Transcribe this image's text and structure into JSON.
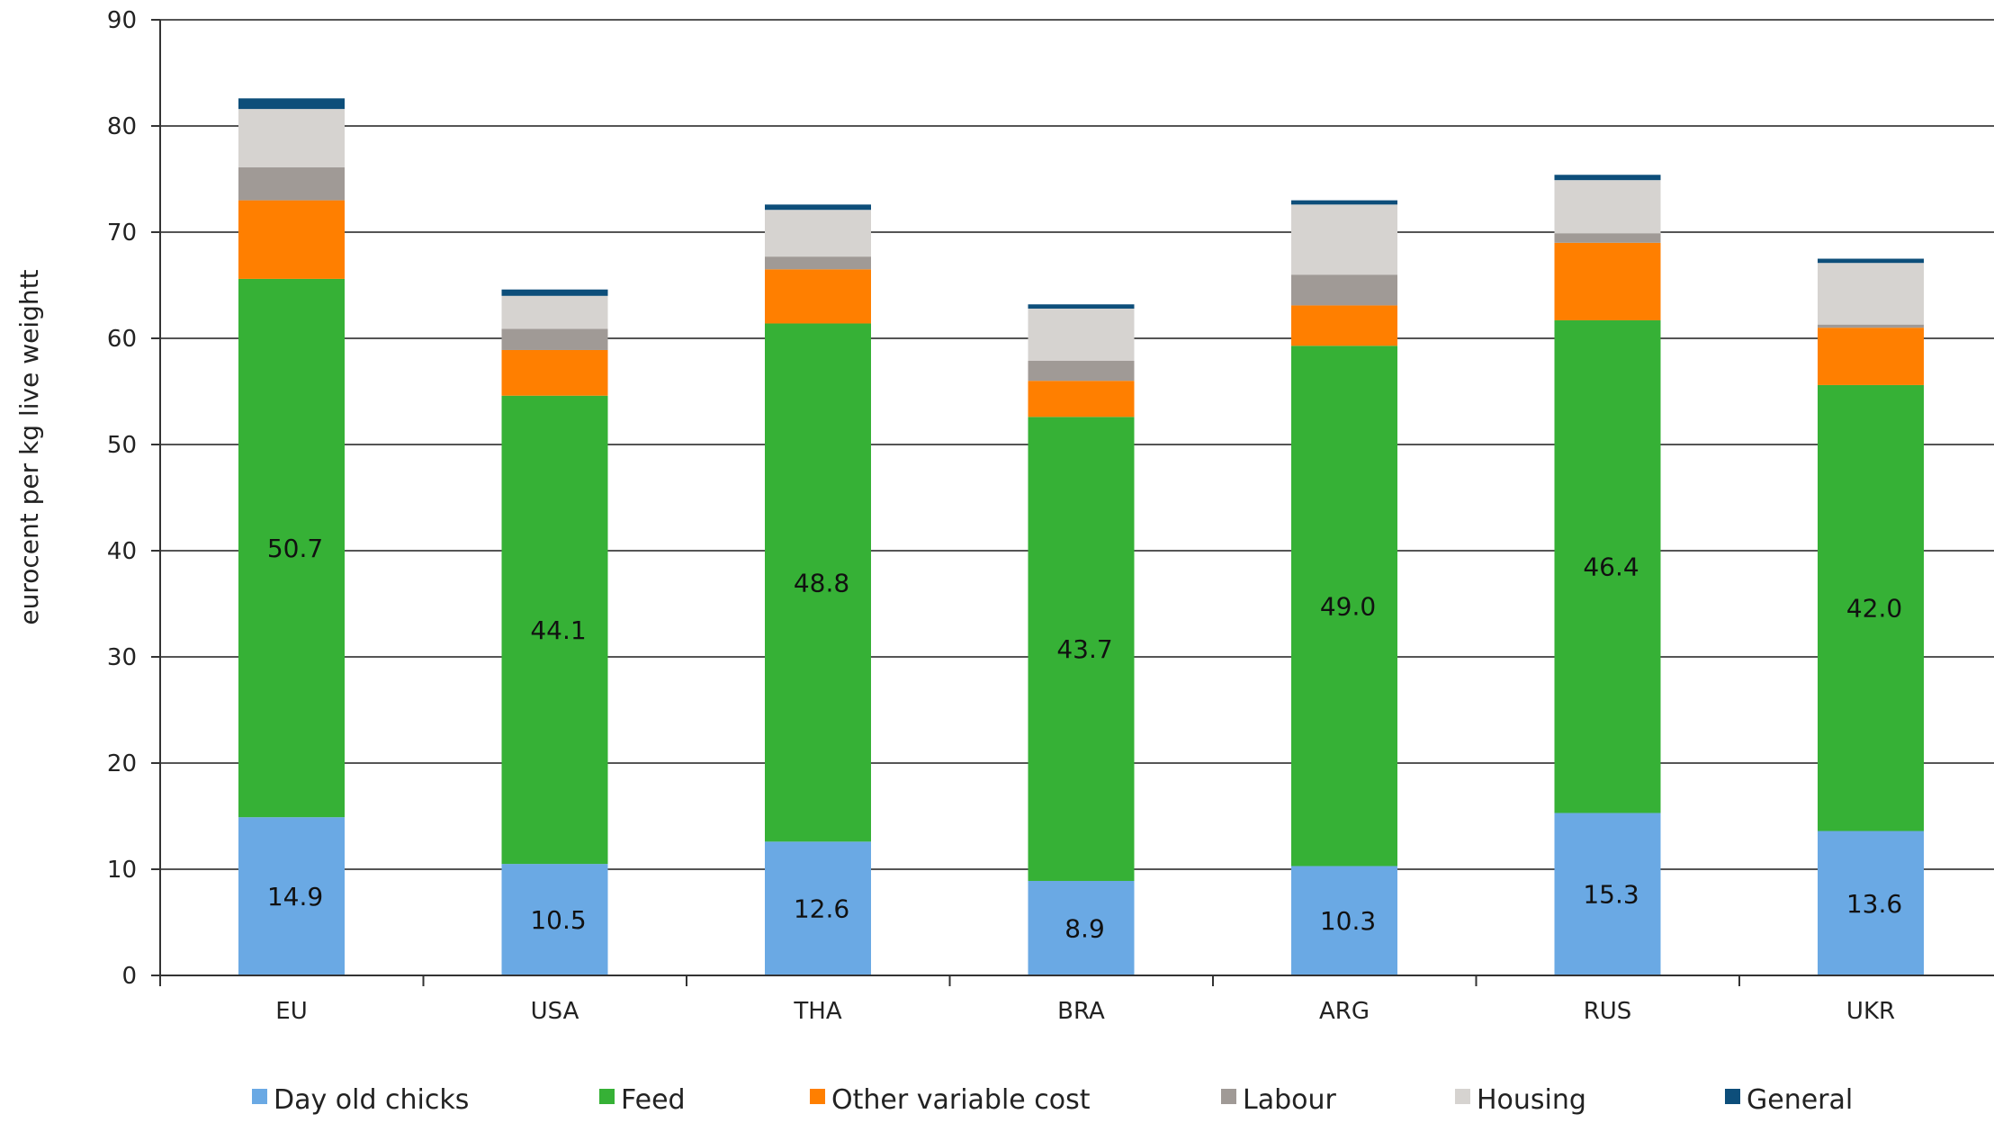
{
  "chart_data": {
    "type": "bar",
    "stacked": true,
    "title": "",
    "xlabel": "",
    "ylabel": "eurocent per kg live weightt",
    "ylim": [
      0,
      90
    ],
    "yticks": [
      0,
      10,
      20,
      30,
      40,
      50,
      60,
      70,
      80,
      90
    ],
    "grid": true,
    "legend_position": "bottom",
    "categories": [
      "EU",
      "USA",
      "THA",
      "BRA",
      "ARG",
      "RUS",
      "UKR"
    ],
    "series": [
      {
        "name": "Day old chicks",
        "color": "#6aa9e4",
        "values": [
          14.9,
          10.5,
          12.6,
          8.9,
          10.3,
          15.3,
          13.6
        ],
        "labels": [
          "14.9",
          "10.5",
          "12.6",
          "8.9",
          "10.3",
          "15.3",
          "13.6"
        ]
      },
      {
        "name": "Feed",
        "color": "#36b136",
        "values": [
          50.7,
          44.1,
          48.8,
          43.7,
          49.0,
          46.4,
          42.0
        ],
        "labels": [
          "50.7",
          "44.1",
          "48.8",
          "43.7",
          "49.0",
          "46.4",
          "42.0"
        ]
      },
      {
        "name": "Other variable cost",
        "color": "#ff7f00",
        "values": [
          7.4,
          4.3,
          5.1,
          3.4,
          3.8,
          7.3,
          5.4
        ]
      },
      {
        "name": "Labour",
        "color": "#a09a96",
        "values": [
          3.1,
          2.0,
          1.2,
          1.9,
          2.9,
          0.9,
          0.3
        ]
      },
      {
        "name": "Housing",
        "color": "#d6d3d0",
        "values": [
          5.5,
          3.1,
          4.4,
          4.9,
          6.6,
          5.0,
          5.8
        ]
      },
      {
        "name": "General",
        "color": "#0d4e7a",
        "values": [
          1.0,
          0.6,
          0.5,
          0.4,
          0.4,
          0.5,
          0.4
        ]
      }
    ]
  }
}
